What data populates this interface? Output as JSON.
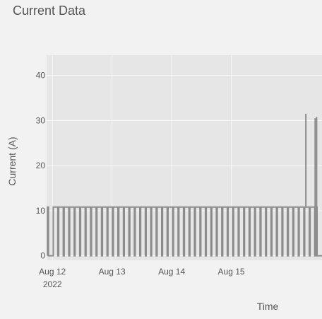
{
  "chart_data": {
    "type": "line",
    "title": "Current Data",
    "xlabel": "Time",
    "ylabel": "Current (A)",
    "ylim": [
      -1,
      44.5
    ],
    "xlim": [
      "2022-08-11 21:40",
      "2022-08-16 12:30"
    ],
    "y_ticks": [
      0,
      10,
      20,
      30,
      40
    ],
    "x_ticks": [
      {
        "value": "2022-08-12 00:00",
        "label": "Aug 12",
        "sublabel": "2022"
      },
      {
        "value": "2022-08-13 00:00",
        "label": "Aug 13",
        "sublabel": ""
      },
      {
        "value": "2022-08-14 00:00",
        "label": "Aug 14",
        "sublabel": ""
      },
      {
        "value": "2022-08-15 00:00",
        "label": "Aug 15",
        "sublabel": ""
      }
    ],
    "grid": true,
    "series_color": "#8c8c8c",
    "series": [
      {
        "on_level": 10.8,
        "off_level": 0,
        "segments": [
          {
            "from": "2022-08-11 22:00",
            "to": "2022-08-11 22:25",
            "pattern": "on"
          },
          {
            "from": "2022-08-11 22:25",
            "to": "2022-08-12 00:20",
            "pattern": "off"
          },
          {
            "from": "2022-08-12 00:20",
            "to": "2022-08-16 10:30",
            "pattern": "cycling",
            "cycle_hours": 2.2,
            "off_hours": 0.35
          },
          {
            "from": "2022-08-16 10:30",
            "to": "2022-08-16 12:30",
            "pattern": "off"
          }
        ],
        "spikes": [
          {
            "time": "2022-08-16 06:00",
            "value": 31.5
          },
          {
            "time": "2022-08-16 09:45",
            "value": 30.5
          },
          {
            "time": "2022-08-16 10:20",
            "value": 30.8
          }
        ]
      }
    ]
  }
}
